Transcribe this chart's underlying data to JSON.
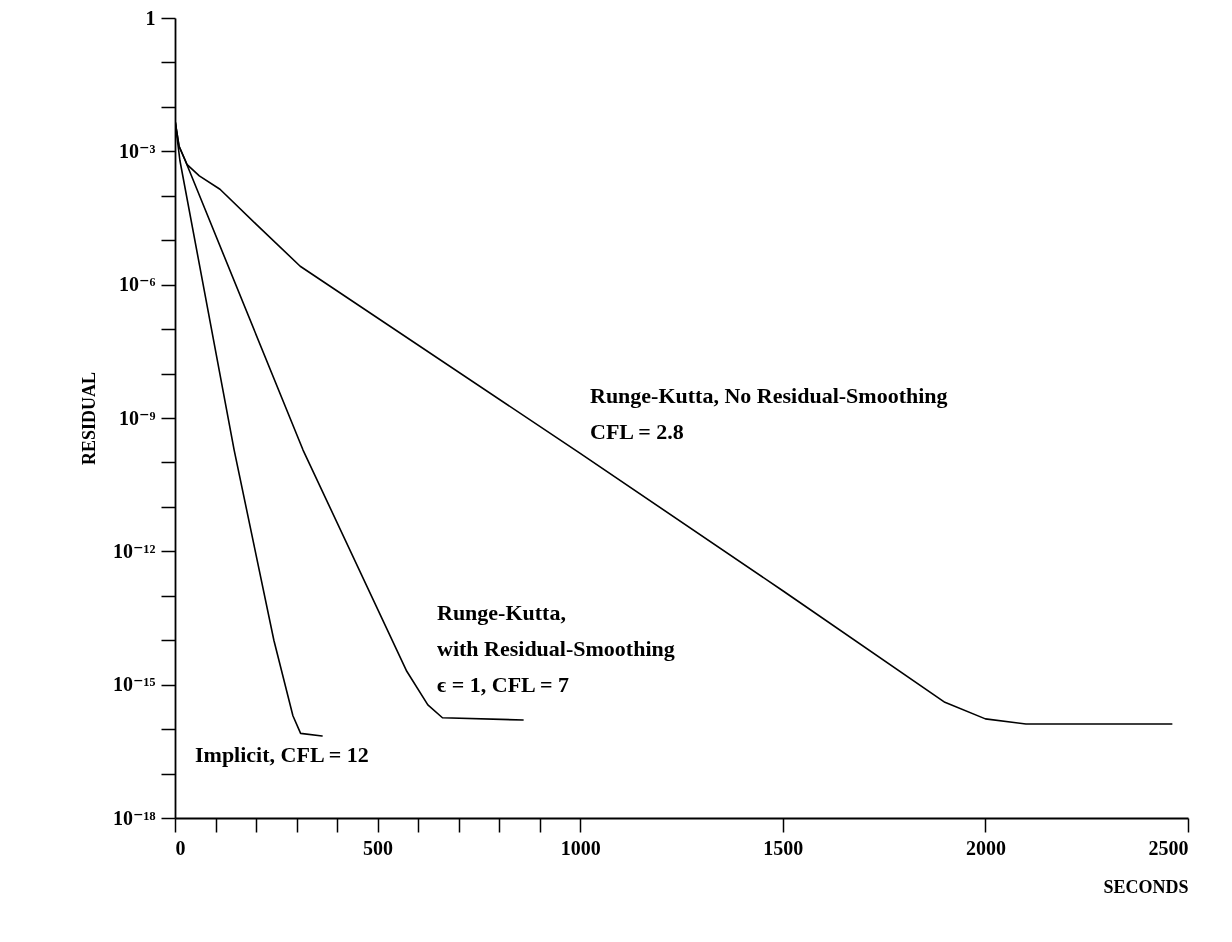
{
  "chart_data": {
    "type": "line",
    "xlabel": "SECONDS",
    "ylabel": "RESIDUAL",
    "log": "y",
    "xlim": [
      0,
      2500
    ],
    "ylim": [
      1e-18,
      1
    ],
    "xticks": [
      0,
      {
        "value": 100,
        "label": null
      },
      {
        "value": 200,
        "label": null
      },
      {
        "value": 300,
        "label": null
      },
      {
        "value": 400,
        "label": null
      },
      500,
      {
        "value": 600,
        "label": null
      },
      {
        "value": 700,
        "label": null
      },
      {
        "value": 800,
        "label": null
      },
      {
        "value": 900,
        "label": null
      },
      1000,
      1500,
      2000,
      2500
    ],
    "yticks": [
      1,
      {
        "value": 0.1,
        "label": null
      },
      {
        "value": 0.01,
        "label": null
      },
      {
        "value": 0.001,
        "label": "10⁻³"
      },
      {
        "value": 0.0001,
        "label": null
      },
      {
        "value": 1e-05,
        "label": null
      },
      {
        "value": 1e-06,
        "label": "10⁻⁶"
      },
      {
        "value": 1e-07,
        "label": null
      },
      {
        "value": 1e-08,
        "label": null
      },
      {
        "value": 1e-09,
        "label": "10⁻⁹"
      },
      {
        "value": 1e-10,
        "label": null
      },
      {
        "value": 1e-11,
        "label": null
      },
      {
        "value": 1e-12,
        "label": "10⁻¹²"
      },
      {
        "value": 1e-13,
        "label": null
      },
      {
        "value": 1e-14,
        "label": null
      },
      {
        "value": 1e-15,
        "label": "10⁻¹⁵"
      },
      {
        "value": 1e-16,
        "label": null
      },
      {
        "value": 1e-17,
        "label": null
      },
      {
        "value": 1e-18,
        "label": "10⁻¹⁸"
      }
    ],
    "grid": false,
    "legend": false,
    "marker": "none",
    "line_style": "solid",
    "series": [
      {
        "color": "#000000",
        "x": [
          0,
          12,
          146,
          244,
          291,
          310,
          363
        ],
        "values": [
          0.005,
          0.00063,
          1.9e-10,
          1e-14,
          2e-16,
          8e-17,
          7e-17
        ]
      },
      {
        "color": "#000000",
        "x": [
          0,
          10,
          25,
          316,
          572,
          624,
          660,
          859
        ],
        "values": [
          0.005,
          0.0013,
          0.00063,
          1.9e-10,
          2e-15,
          3.5e-16,
          1.8e-16,
          1.6e-16
        ]
      },
      {
        "color": "#000000",
        "x": [
          0,
          10,
          30,
          60,
          111,
          200,
          309,
          1000,
          1500,
          1900,
          2000,
          2100,
          2460
        ],
        "values": [
          0.005,
          0.0013,
          0.0005,
          0.00028,
          0.00014,
          2.3e-05,
          2.6e-06,
          1.6e-10,
          1.3e-13,
          4e-16,
          1.7e-16,
          1.3e-16,
          1.3e-16
        ]
      }
    ],
    "annotations": [
      "Implicit, CFL = 12",
      "Runge-Kutta,\nwith Residual-Smoothing\nϵ = 1, CFL = 7",
      "Runge-Kutta, No Residual-Smoothing\nCFL = 2.8"
    ]
  }
}
